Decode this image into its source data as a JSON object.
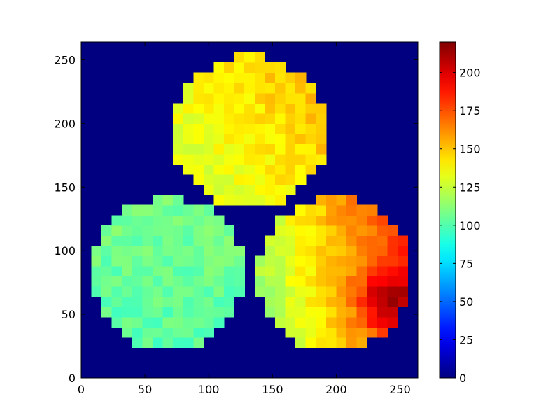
{
  "chart_data": {
    "type": "heatmap",
    "title": "",
    "xlabel": "",
    "ylabel": "",
    "xlim": [
      0,
      264
    ],
    "ylim": [
      0,
      264
    ],
    "xticks": [
      0,
      50,
      100,
      150,
      200,
      250
    ],
    "yticks": [
      0,
      50,
      100,
      150,
      200,
      250
    ],
    "grid": false,
    "background_value": 0,
    "cell_size": 8,
    "colormap": "jet",
    "colorbar": {
      "vmin": 0,
      "vmax": 220,
      "ticks": [
        0,
        25,
        50,
        75,
        100,
        125,
        150,
        175,
        200
      ],
      "location": "right"
    },
    "regions": [
      {
        "center": [
          132,
          193
        ],
        "radius": 60,
        "base_value": 140,
        "gradient": [
          0.15,
          0.1
        ],
        "description_value_range": [
          120,
          160
        ]
      },
      {
        "center": [
          68,
          82
        ],
        "radius": 60,
        "base_value": 105,
        "gradient": [
          0.0,
          0.05
        ],
        "description_value_range": [
          85,
          115
        ]
      },
      {
        "center": [
          198,
          82
        ],
        "radius": 60,
        "base_value": 150,
        "gradient": [
          0.55,
          0.1
        ],
        "description_value_range": [
          125,
          220
        ]
      }
    ]
  }
}
